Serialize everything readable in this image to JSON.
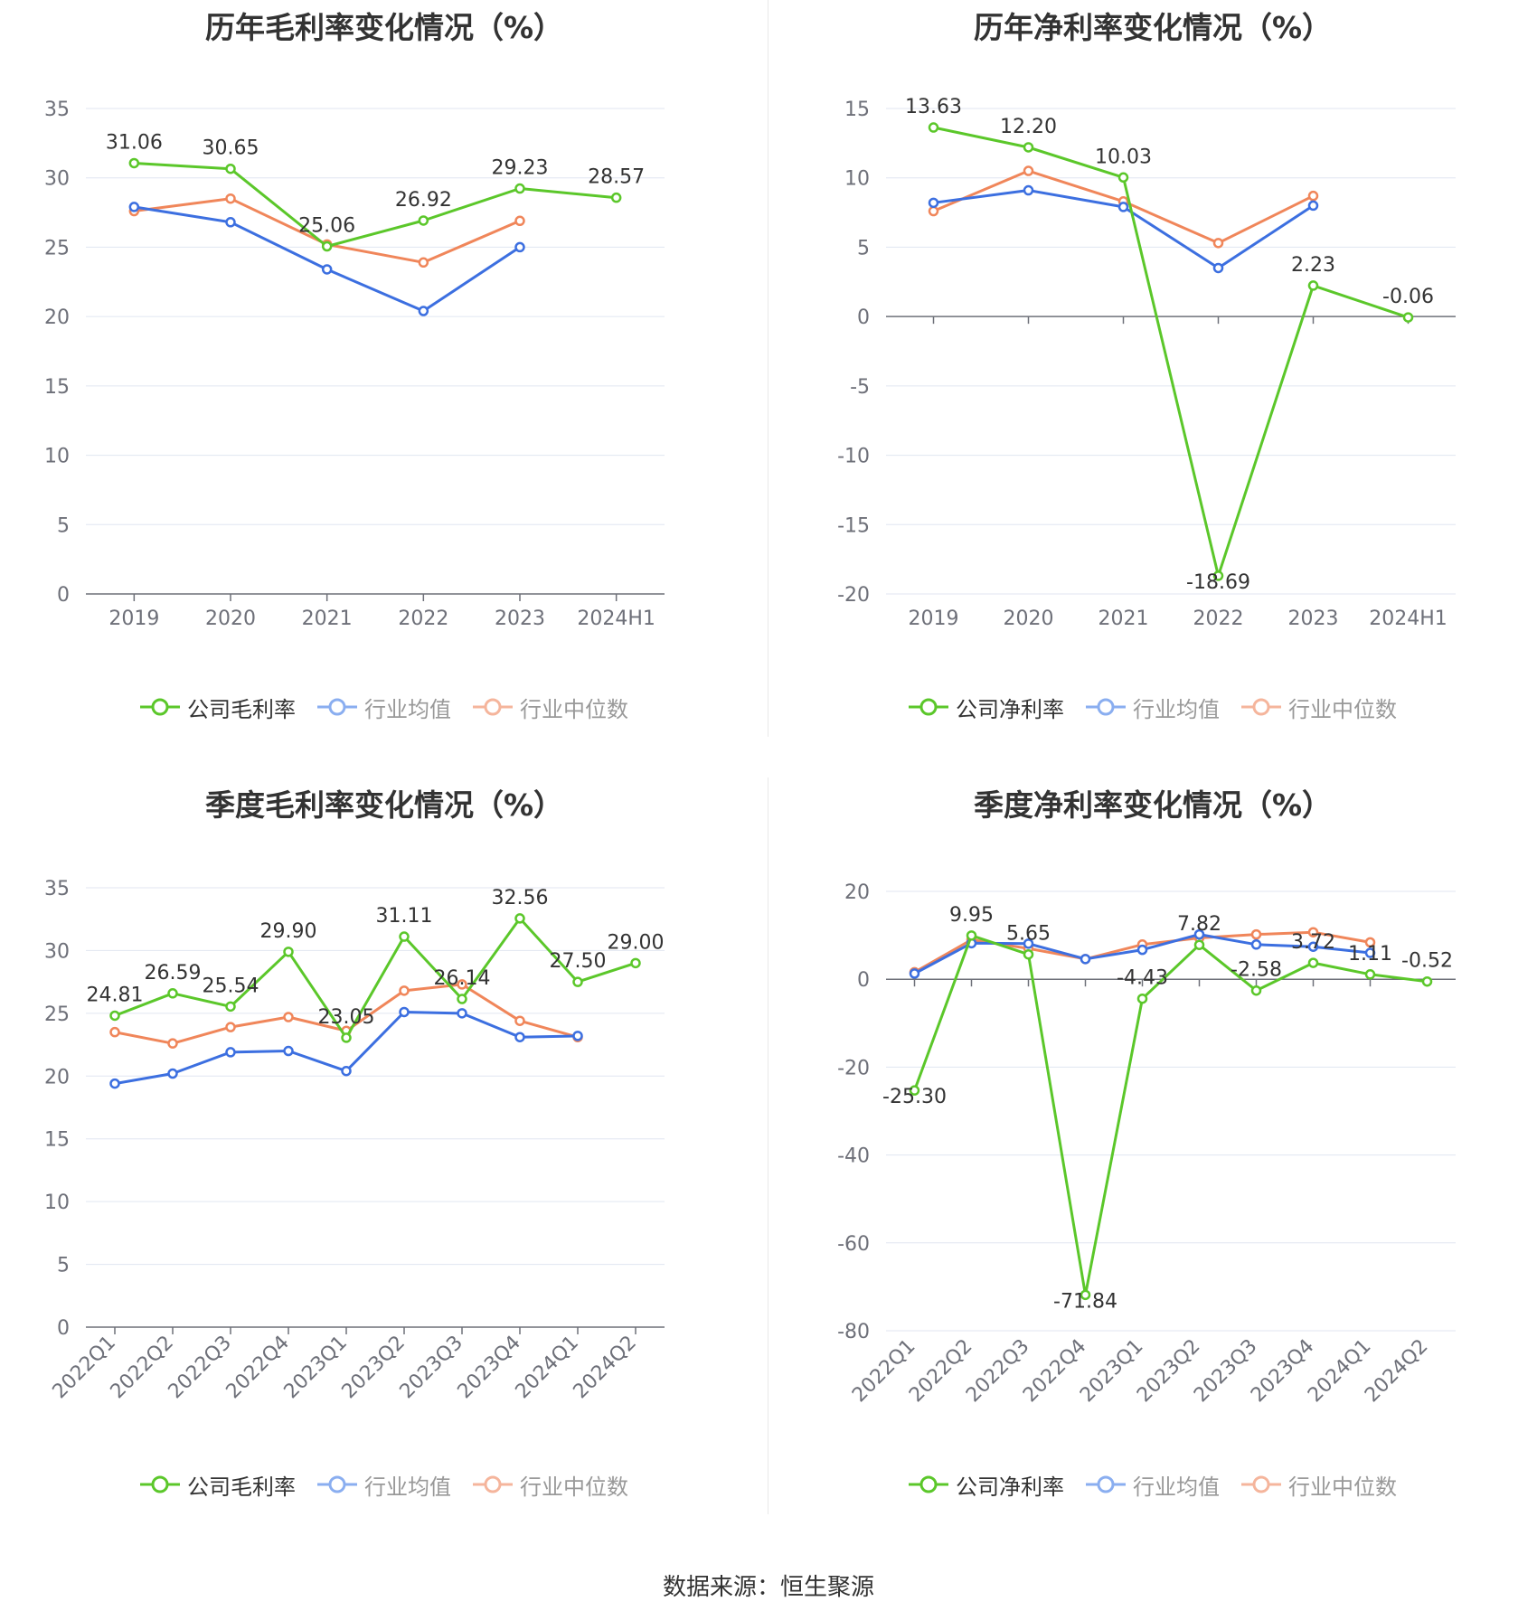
{
  "source_label": "数据来源：恒生聚源",
  "colors": {
    "company": "#5bc72a",
    "avg": "#3c6fe0",
    "median": "#f0865a",
    "avg_legend": "#8aaef0",
    "median_legend": "#f5b59c"
  },
  "chart_data": [
    {
      "type": "line",
      "title": "历年毛利率变化情况（%）",
      "categories": [
        "2019",
        "2020",
        "2021",
        "2022",
        "2023",
        "2024H1"
      ],
      "ylim": [
        0,
        35
      ],
      "yticks": [
        0,
        5,
        10,
        15,
        20,
        25,
        30,
        35
      ],
      "grid": true,
      "legend_position": "bottom",
      "series": [
        {
          "name": "公司毛利率",
          "color": "#5bc72a",
          "labels": true,
          "values": [
            31.06,
            30.65,
            25.06,
            26.92,
            29.23,
            28.57
          ]
        },
        {
          "name": "行业均值",
          "color": "#3c6fe0",
          "values": [
            27.9,
            26.8,
            23.4,
            20.4,
            25.0,
            null
          ]
        },
        {
          "name": "行业中位数",
          "color": "#f0865a",
          "values": [
            27.6,
            28.5,
            25.2,
            23.9,
            26.9,
            null
          ]
        }
      ]
    },
    {
      "type": "line",
      "title": "历年净利率变化情况（%）",
      "categories": [
        "2019",
        "2020",
        "2021",
        "2022",
        "2023",
        "2024H1"
      ],
      "ylim": [
        -20,
        15
      ],
      "yticks": [
        -20,
        -15,
        -10,
        -5,
        0,
        5,
        10,
        15
      ],
      "grid": true,
      "legend_position": "bottom",
      "series": [
        {
          "name": "公司净利率",
          "color": "#5bc72a",
          "labels": true,
          "values": [
            13.63,
            12.2,
            10.03,
            -18.69,
            2.23,
            -0.06
          ]
        },
        {
          "name": "行业均值",
          "color": "#3c6fe0",
          "values": [
            8.2,
            9.1,
            7.9,
            3.5,
            8.0,
            null
          ]
        },
        {
          "name": "行业中位数",
          "color": "#f0865a",
          "values": [
            7.6,
            10.5,
            8.3,
            5.3,
            8.7,
            null
          ]
        }
      ]
    },
    {
      "type": "line",
      "title": "季度毛利率变化情况（%）",
      "categories": [
        "2022Q1",
        "2022Q2",
        "2022Q3",
        "2022Q4",
        "2023Q1",
        "2023Q2",
        "2023Q3",
        "2023Q4",
        "2024Q1",
        "2024Q2"
      ],
      "ylim": [
        0,
        35
      ],
      "yticks": [
        0,
        5,
        10,
        15,
        20,
        25,
        30,
        35
      ],
      "grid": true,
      "legend_position": "bottom",
      "series": [
        {
          "name": "公司毛利率",
          "color": "#5bc72a",
          "labels": true,
          "values": [
            24.81,
            26.59,
            25.54,
            29.9,
            23.05,
            31.11,
            26.14,
            32.56,
            27.5,
            29.0
          ]
        },
        {
          "name": "行业均值",
          "color": "#3c6fe0",
          "values": [
            19.4,
            20.2,
            21.9,
            22.0,
            20.4,
            25.1,
            25.0,
            23.1,
            23.2,
            null
          ]
        },
        {
          "name": "行业中位数",
          "color": "#f0865a",
          "values": [
            23.5,
            22.6,
            23.9,
            24.7,
            23.6,
            26.8,
            27.3,
            24.4,
            23.1,
            null
          ]
        }
      ]
    },
    {
      "type": "line",
      "title": "季度净利率变化情况（%）",
      "categories": [
        "2022Q1",
        "2022Q2",
        "2022Q3",
        "2022Q4",
        "2023Q1",
        "2023Q2",
        "2023Q3",
        "2023Q4",
        "2024Q1",
        "2024Q2"
      ],
      "ylim": [
        -80,
        20
      ],
      "yticks": [
        -80,
        -60,
        -40,
        -20,
        0,
        20
      ],
      "grid": true,
      "legend_position": "bottom",
      "series": [
        {
          "name": "公司净利率",
          "color": "#5bc72a",
          "labels": true,
          "values": [
            -25.3,
            9.95,
            5.65,
            -71.84,
            -4.43,
            7.82,
            -2.58,
            3.72,
            1.11,
            -0.52
          ]
        },
        {
          "name": "行业均值",
          "color": "#3c6fe0",
          "values": [
            1.3,
            8.2,
            8.1,
            4.6,
            6.7,
            10.2,
            7.9,
            7.4,
            6.0,
            null
          ]
        },
        {
          "name": "行业中位数",
          "color": "#f0865a",
          "values": [
            1.6,
            9.0,
            7.0,
            4.6,
            7.9,
            9.4,
            10.2,
            10.7,
            8.4,
            null
          ]
        }
      ]
    }
  ]
}
